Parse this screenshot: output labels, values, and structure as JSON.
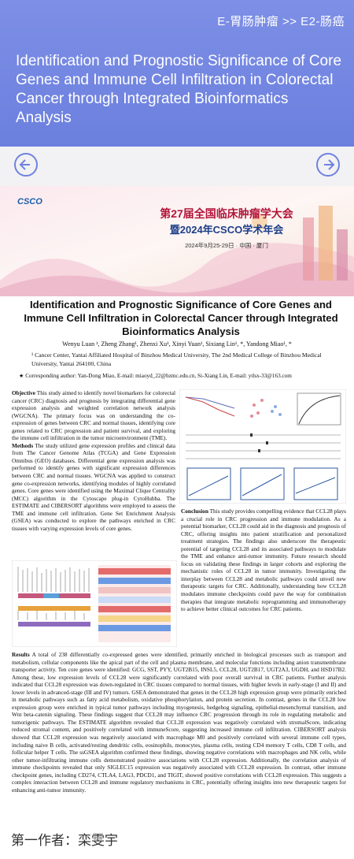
{
  "header": {
    "category": "E-胃肠肿瘤 >> E2-肠癌",
    "title": "Identification and Prognostic Significance of Core Genes and Immune Cell Infiltration in Colorectal Cancer through Integrated Bioinformatics Analysis"
  },
  "poster": {
    "banner": {
      "logo": "CSCO",
      "line1": "第27届全国临床肿瘤学大会",
      "line2": "暨2024年CSCO学术年会",
      "date": "2024年9月25-29日 · 中国 · 厦门"
    },
    "title": "Identification and Prognostic Significance of Core Genes and Immune Cell Infiltration in Colorectal Cancer through Integrated Bioinformatics Analysis",
    "authors": "Wenyu Luan ¹, Zheng Zhang¹, Zhenxi Xu¹, Xinyi Yuan¹, Sixiang Lin¹, *, Yandong Miao¹, *",
    "affiliation": "¹ Cancer Center, Yantai Affiliated Hospital of Binzhou Medical University, The 2nd Medical College of Binzhou Medical University, Yantai 264100, China",
    "corresponding": "★ Corresponding author: Yan-Dong Miao, E-mail: miaoyd_22@bzmc.edu.cn, Si-Xiang Lin, E-mail: ytlsx-33@163.com",
    "objective": {
      "heading": "Objective",
      "body": "This study aimed to identify novel biomarkers for colorectal cancer (CRC) diagnosis and prognosis by integrating differential gene expression analysis and weighted correlation network analysis (WGCNA). The primary focus was on understanding the co-expression of genes between CRC and normal tissues, identifying core genes related to CRC progression and patient survival, and exploring the immune cell infiltration in the tumor microenvironment (TME)."
    },
    "methods": {
      "heading": "Methods",
      "body": "The study utilized gene expression profiles and clinical data from The Cancer Genome Atlas (TCGA) and Gene Expression Omnibus (GEO) databases. Differential gene expression analysis was performed to identify genes with significant expression differences between CRC and normal tissues. WGCNA was applied to construct gene co-expression networks, identifying modules of highly correlated genes. Core genes were identified using the Maximal Clique Centrality (MCC) algorithm in the Cytoscape plug-in CytoHubba. The ESTIMATE and CIBERSORT algorithms were employed to assess the TME and immune cell infiltration. Gene Set Enrichment Analysis (GSEA) was conducted to explore the pathways enriched in CRC tissues with varying expression levels of core genes."
    },
    "conclusion": {
      "heading": "Conclusion",
      "body": "This study provides compelling evidence that CCL28 plays a crucial role in CRC progression and immune modulation. As a potential biomarker, CCL28 could aid in the diagnosis and prognosis of CRC, offering insights into patient stratification and personalized treatment strategies. The findings also underscore the therapeutic potential of targeting CCL28 and its associated pathways to modulate the TME and enhance anti-tumor immunity. Future research should focus on validating these findings in larger cohorts and exploring the mechanistic roles of CCL28 in tumor immunity. Investigating the interplay between CCL28 and metabolic pathways could unveil new therapeutic targets for CRC. Additionally, understanding how CCL28 modulates immune checkpoints could pave the way for combination therapies that integrate metabolic reprogramming and immunotherapy to achieve better clinical outcomes for CRC patients."
    },
    "results": {
      "heading": "Results",
      "body": "A total of 238 differentially co-expressed genes were identified, primarily enriched in biological processes such as transport and metabolism, cellular components like the apical part of the cell and plasma membrane, and molecular functions including anion transmembrane transporter activity. Ten core genes were identified: GCG, SST, PYY, UGT2B15, INSL5, CCL28, UGT2B17, UGT2A3, UGDH, and HSD17B2. Among these, low expression levels of CCL28 were significantly correlated with poor overall survival in CRC patients. Further analysis indicated that CCL28 expression was down-regulated in CRC tissues compared to normal tissues, with higher levels in early-stage (I and II) and lower levels in advanced-stage (III and IV) tumors. GSEA demonstrated that genes in the CCL28 high expression group were primarily enriched in metabolic pathways such as fatty acid metabolism, oxidative phosphorylation, and protein secretion. In contrast, genes in the CCL28 low expression group were enriched in typical tumor pathways including myogenesis, hedgehog signaling, epithelial-mesenchymal transition, and Wnt beta-catenin signaling. These findings suggest that CCL28 may influence CRC progression through its role in regulating metabolic and tumorigenic pathways. The ESTIMATE algorithm revealed that CCL28 expression was negatively correlated with stromalScore, indicating reduced stromal content, and positively correlated with immuneScore, suggesting increased immune cell infiltration. CIBERSORT analysis showed that CCL28 expression was negatively associated with macrophage M0 and positively correlated with several immune cell types, including naive B cells, activated/resting dendritic cells, eosinophils, monocytes, plasma cells, resting CD4 memory T cells, CD8 T cells, and follicular helper T cells. The ssGSEA algorithm confirmed these findings, showing negative correlations with macrophages and NK cells, while other tumor-infiltrating immune cells demonstrated positive associations with CCL28 expression. Additionally, the correlation analysis of immune checkpoints revealed that only SIGLEC15 expression was negatively associated with CCL28 expression. In contrast, other immune checkpoint genes, including CD274, CTLA4, LAG3, PDCD1, and TIGIT, showed positive correlations with CCL28 expression. This suggests a complex interaction between CCL28 and immune regulatory mechanisms in CRC, potentially offering insights into new therapeutic targets for enhancing anti-tumor immunity."
    }
  },
  "footer": "第一作者：栾雯宇"
}
